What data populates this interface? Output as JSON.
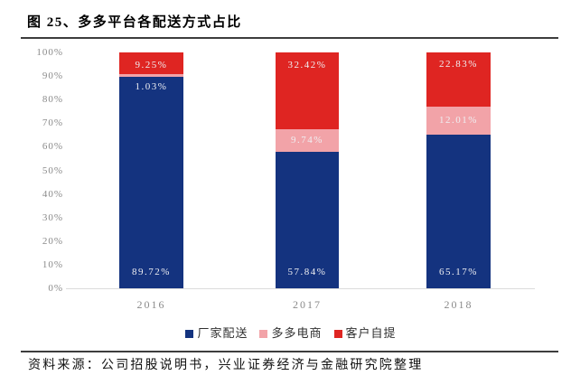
{
  "header": {
    "title": "图 25、多多平台各配送方式占比"
  },
  "footer": {
    "source": "资料来源：公司招股说明书，兴业证券经济与金融研究院整理"
  },
  "colors": {
    "blue": "#14337f",
    "pink": "#f2a3a8",
    "red": "#df2522",
    "axis_text": "#8a8a8a",
    "axis_line": "#dbdbdb",
    "bar_label_text": "#efeff2",
    "divider": "#3d3d3d"
  },
  "chart_data": {
    "type": "bar",
    "stacked": true,
    "title": "多多平台各配送方式占比",
    "categories": [
      "2016",
      "2017",
      "2018"
    ],
    "series": [
      {
        "name": "厂家配送",
        "color": "#14337f",
        "values": [
          89.72,
          57.84,
          65.17
        ],
        "labels": [
          "89.72%",
          "57.84%",
          "65.17%"
        ]
      },
      {
        "name": "多多电商",
        "color": "#f2a3a8",
        "values": [
          1.03,
          9.74,
          12.01
        ],
        "labels": [
          "1.03%",
          "9.74%",
          "12.01%"
        ]
      },
      {
        "name": "客户自提",
        "color": "#df2522",
        "values": [
          9.25,
          32.42,
          22.83
        ],
        "labels": [
          "9.25%",
          "32.42%",
          "22.83%"
        ]
      }
    ],
    "xlabel": "",
    "ylabel": "",
    "ylim": [
      0,
      100
    ],
    "ytick_step": 10,
    "ytick_labels": [
      "0%",
      "10%",
      "20%",
      "30%",
      "40%",
      "50%",
      "60%",
      "70%",
      "80%",
      "90%",
      "100%"
    ],
    "value_suffix": "%",
    "grid": false,
    "legend_position": "bottom"
  }
}
